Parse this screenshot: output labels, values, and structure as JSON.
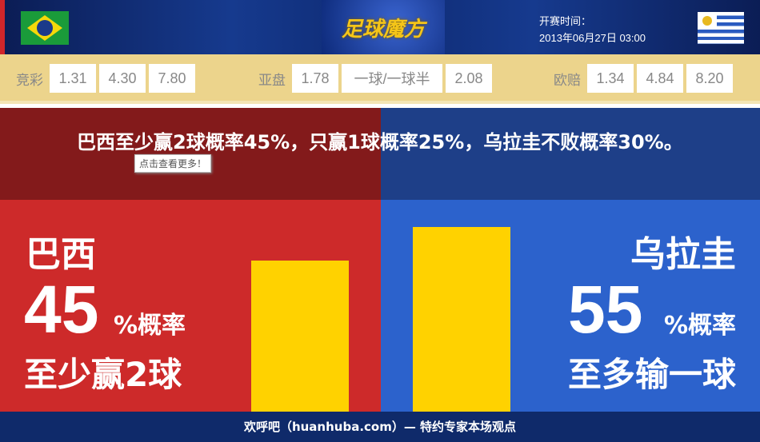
{
  "header": {
    "logo": "足球魔方",
    "time_label": "开赛时间：",
    "time_value": "2013年06月27日 03:00",
    "home_flag": "brazil-flag",
    "away_flag": "uruguay-flag"
  },
  "odds": {
    "jingcai": {
      "label": "竞彩",
      "values": [
        "1.31",
        "4.30",
        "7.80"
      ]
    },
    "yapan": {
      "label": "亚盘",
      "values": [
        "1.78",
        "一球/一球半",
        "2.08"
      ]
    },
    "ouzhi": {
      "label": "欧赔",
      "values": [
        "1.34",
        "4.84",
        "8.20"
      ]
    }
  },
  "headline": "巴西至少赢2球概率45%，只赢1球概率25%，乌拉圭不败概率30%。",
  "tooltip": "点击查看更多！",
  "home": {
    "team": "巴西",
    "percent": "45",
    "unit": "%概率",
    "desc": "至少赢2球",
    "value": 45,
    "color": "#cd2a2a"
  },
  "away": {
    "team": "乌拉圭",
    "percent": "55",
    "unit": "%概率",
    "desc": "至多输一球",
    "value": 55,
    "color": "#2c62cc"
  },
  "bar_color": "#ffd200",
  "footer": "欢呼吧（huanhuba.com）— 特约专家本场观点"
}
